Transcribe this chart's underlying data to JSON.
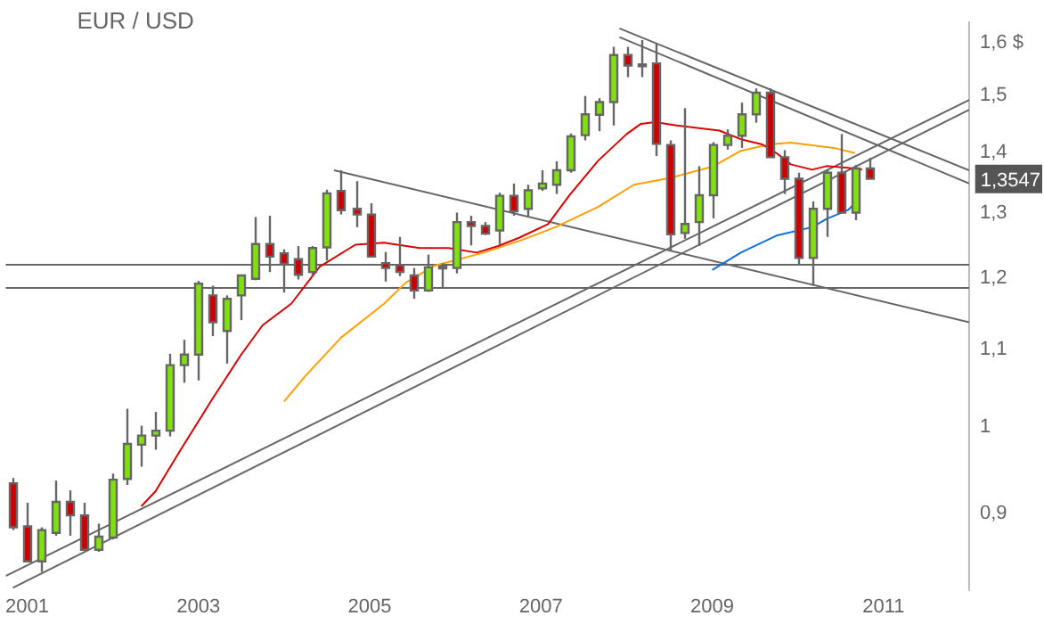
{
  "chart_data": {
    "type": "candlestick",
    "title": "EUR / USD",
    "log": "y",
    "grid": false,
    "legend": false,
    "marker": "none",
    "xlim": [
      "2000-10",
      "2012-01"
    ],
    "xticks": [
      "2001",
      "2003",
      "2005",
      "2007",
      "2009",
      "2011"
    ],
    "ylim": [
      0.82,
      1.64
    ],
    "yticks": [
      {
        "value": 0.9,
        "label": "0,9"
      },
      {
        "value": 1,
        "label": "1"
      },
      {
        "value": 1.1,
        "label": "1,1"
      },
      {
        "value": 1.2,
        "label": "1,2"
      },
      {
        "value": 1.3,
        "label": "1,3"
      },
      {
        "value": 1.4,
        "label": "1,4"
      },
      {
        "value": 1.5,
        "label": "1,5"
      },
      {
        "value": 1.6,
        "label": "1,6 $"
      }
    ],
    "ref_lines": [
      {
        "axis": "y",
        "value": 1.222,
        "color": "#666666"
      },
      {
        "axis": "y",
        "value": 1.188,
        "color": "#666666"
      }
    ],
    "annotations": [
      "1,3547"
    ],
    "series": [
      {
        "type": "candlestick",
        "x": [
          "2000-11",
          "2001-01",
          "2001-03",
          "2001-05",
          "2001-07",
          "2001-09",
          "2001-11",
          "2002-01",
          "2002-03",
          "2002-05",
          "2002-07",
          "2002-09",
          "2002-11",
          "2003-01",
          "2003-03",
          "2003-05",
          "2003-07",
          "2003-09",
          "2003-11",
          "2004-01",
          "2004-03",
          "2004-05",
          "2004-07",
          "2004-09",
          "2004-11",
          "2005-01",
          "2005-03",
          "2005-05",
          "2005-07",
          "2005-09",
          "2005-11",
          "2006-01",
          "2006-03",
          "2006-05",
          "2006-07",
          "2006-09",
          "2006-11",
          "2007-01",
          "2007-03",
          "2007-05",
          "2007-07",
          "2007-09",
          "2007-11",
          "2008-01",
          "2008-03",
          "2008-05",
          "2008-07",
          "2008-09",
          "2008-11",
          "2009-01",
          "2009-03",
          "2009-05",
          "2009-07",
          "2009-09",
          "2009-11",
          "2010-01",
          "2010-03",
          "2010-05",
          "2010-07",
          "2010-09",
          "2010-11"
        ],
        "ohlc": [
          [
            0.934,
            0.94,
            0.882,
            0.885
          ],
          [
            0.886,
            0.912,
            0.849,
            0.849
          ],
          [
            0.849,
            0.885,
            0.838,
            0.882
          ],
          [
            0.879,
            0.937,
            0.876,
            0.913
          ],
          [
            0.913,
            0.926,
            0.876,
            0.898
          ],
          [
            0.898,
            0.912,
            0.861,
            0.861
          ],
          [
            0.861,
            0.889,
            0.859,
            0.875
          ],
          [
            0.874,
            0.945,
            0.872,
            0.938
          ],
          [
            0.939,
            1.023,
            0.932,
            0.98
          ],
          [
            0.979,
            1.002,
            0.953,
            0.99
          ],
          [
            0.99,
            1.019,
            0.973,
            0.996
          ],
          [
            0.996,
            1.094,
            0.989,
            1.079
          ],
          [
            1.079,
            1.113,
            1.056,
            1.093
          ],
          [
            1.093,
            1.196,
            1.059,
            1.192
          ],
          [
            1.175,
            1.189,
            1.118,
            1.137
          ],
          [
            1.125,
            1.175,
            1.081,
            1.17
          ],
          [
            1.175,
            1.205,
            1.14,
            1.204
          ],
          [
            1.199,
            1.293,
            1.197,
            1.251
          ],
          [
            1.251,
            1.295,
            1.209,
            1.232
          ],
          [
            1.237,
            1.243,
            1.179,
            1.221
          ],
          [
            1.228,
            1.248,
            1.198,
            1.205
          ],
          [
            1.209,
            1.248,
            1.203,
            1.245
          ],
          [
            1.246,
            1.337,
            1.226,
            1.331
          ],
          [
            1.335,
            1.369,
            1.297,
            1.304
          ],
          [
            1.306,
            1.351,
            1.277,
            1.297
          ],
          [
            1.297,
            1.315,
            1.232,
            1.232
          ],
          [
            1.222,
            1.239,
            1.195,
            1.215
          ],
          [
            1.219,
            1.262,
            1.203,
            1.209
          ],
          [
            1.204,
            1.215,
            1.17,
            1.182
          ],
          [
            1.182,
            1.235,
            1.18,
            1.216
          ],
          [
            1.215,
            1.222,
            1.187,
            1.217
          ],
          [
            1.215,
            1.3,
            1.207,
            1.285
          ],
          [
            1.285,
            1.295,
            1.249,
            1.279
          ],
          [
            1.279,
            1.285,
            1.265,
            1.267
          ],
          [
            1.272,
            1.332,
            1.25,
            1.327
          ],
          [
            1.327,
            1.347,
            1.295,
            1.302
          ],
          [
            1.306,
            1.345,
            1.294,
            1.336
          ],
          [
            1.339,
            1.369,
            1.335,
            1.347
          ],
          [
            1.345,
            1.384,
            1.33,
            1.369
          ],
          [
            1.369,
            1.432,
            1.365,
            1.427
          ],
          [
            1.429,
            1.499,
            1.42,
            1.466
          ],
          [
            1.465,
            1.495,
            1.436,
            1.488
          ],
          [
            1.488,
            1.592,
            1.446,
            1.576
          ],
          [
            1.576,
            1.592,
            1.534,
            1.556
          ],
          [
            1.558,
            1.605,
            1.534,
            1.556
          ],
          [
            1.56,
            1.599,
            1.393,
            1.414
          ],
          [
            1.412,
            1.42,
            1.24,
            1.266
          ],
          [
            1.268,
            1.477,
            1.259,
            1.282
          ],
          [
            1.285,
            1.376,
            1.248,
            1.328
          ],
          [
            1.328,
            1.417,
            1.291,
            1.412
          ],
          [
            1.412,
            1.439,
            1.404,
            1.428
          ],
          [
            1.428,
            1.487,
            1.407,
            1.466
          ],
          [
            1.466,
            1.513,
            1.451,
            1.505
          ],
          [
            1.505,
            1.513,
            1.391,
            1.391
          ],
          [
            1.391,
            1.403,
            1.33,
            1.355
          ],
          [
            1.355,
            1.365,
            1.22,
            1.23
          ],
          [
            1.23,
            1.318,
            1.189,
            1.306
          ],
          [
            1.306,
            1.37,
            1.262,
            1.365
          ],
          [
            1.365,
            1.431,
            1.3,
            1.3
          ],
          [
            1.3,
            1.378,
            1.288,
            1.372
          ],
          [
            1.372,
            1.39,
            1.3547,
            1.3547
          ]
        ],
        "colors": [
          "#d00000",
          "#d00000",
          "#80e010",
          "#80e010",
          "#d00000",
          "#d00000",
          "#80e010",
          "#80e010",
          "#80e010",
          "#80e010",
          "#80e010",
          "#80e010",
          "#80e010",
          "#80e010",
          "#d00000",
          "#80e010",
          "#80e010",
          "#80e010",
          "#d00000",
          "#d00000",
          "#d00000",
          "#80e010",
          "#80e010",
          "#d00000",
          "#d00000",
          "#d00000",
          "#d00000",
          "#d00000",
          "#d00000",
          "#80e010",
          "#80e010",
          "#80e010",
          "#d00000",
          "#d00000",
          "#80e010",
          "#d00000",
          "#80e010",
          "#80e010",
          "#80e010",
          "#80e010",
          "#80e010",
          "#80e010",
          "#80e010",
          "#d00000",
          "#d00000",
          "#d00000",
          "#d00000",
          "#80e010",
          "#80e010",
          "#80e010",
          "#80e010",
          "#80e010",
          "#80e010",
          "#d00000",
          "#d00000",
          "#d00000",
          "#80e010",
          "#80e010",
          "#d00000",
          "#80e010",
          "#d00000"
        ]
      },
      {
        "type": "line",
        "color": "#dd0000",
        "x": [
          "2002-05",
          "2002-07",
          "2002-10",
          "2003-03",
          "2003-07",
          "2003-10",
          "2004-02",
          "2004-06",
          "2004-11",
          "2005-03",
          "2005-08",
          "2005-12",
          "2006-04",
          "2006-07",
          "2006-10",
          "2007-02",
          "2007-05",
          "2007-09",
          "2008-01",
          "2008-03",
          "2008-05",
          "2008-08",
          "2009-02",
          "2009-05",
          "2009-08",
          "2009-10",
          "2009-12",
          "2010-03",
          "2010-05",
          "2010-08",
          "2010-10"
        ],
        "values": [
          0.908,
          0.925,
          0.966,
          1.036,
          1.093,
          1.133,
          1.163,
          1.217,
          1.25,
          1.253,
          1.245,
          1.245,
          1.238,
          1.248,
          1.261,
          1.282,
          1.328,
          1.385,
          1.431,
          1.449,
          1.452,
          1.446,
          1.437,
          1.422,
          1.413,
          1.398,
          1.379,
          1.37,
          1.376,
          1.373,
          1.37
        ]
      },
      {
        "type": "line",
        "color": "#ffa000",
        "x": [
          "2004-01",
          "2004-04",
          "2004-09",
          "2005-03",
          "2005-06",
          "2005-10",
          "2006-05",
          "2006-10",
          "2007-03",
          "2007-09",
          "2008-02",
          "2008-07",
          "2009-01",
          "2009-05",
          "2009-09",
          "2009-12",
          "2010-06",
          "2010-09"
        ],
        "values": [
          1.032,
          1.065,
          1.116,
          1.163,
          1.193,
          1.218,
          1.238,
          1.256,
          1.277,
          1.309,
          1.345,
          1.356,
          1.375,
          1.402,
          1.413,
          1.416,
          1.407,
          1.398
        ]
      },
      {
        "type": "line",
        "color": "#1070e0",
        "x": [
          "2009-01",
          "2009-05",
          "2009-10",
          "2010-03",
          "2010-05",
          "2010-08",
          "2010-09"
        ],
        "values": [
          1.212,
          1.238,
          1.264,
          1.277,
          1.29,
          1.304,
          1.315
        ]
      },
      {
        "type": "line",
        "color": "#666666",
        "x": [
          "2000-10",
          "2012-01"
        ],
        "values": [
          0.834,
          1.492
        ]
      },
      {
        "type": "line",
        "color": "#666666",
        "x": [
          "2000-11",
          "2012-01"
        ],
        "values": [
          0.822,
          1.474
        ]
      },
      {
        "type": "line",
        "color": "#666666",
        "x": [
          "2004-08",
          "2012-01"
        ],
        "values": [
          1.369,
          1.137
        ]
      },
      {
        "type": "line",
        "color": "#666666",
        "x": [
          "2007-12",
          "2012-01"
        ],
        "values": [
          1.628,
          1.369
        ]
      },
      {
        "type": "line",
        "color": "#666666",
        "x": [
          "2007-12",
          "2012-01"
        ],
        "values": [
          1.611,
          1.347
        ]
      }
    ]
  }
}
